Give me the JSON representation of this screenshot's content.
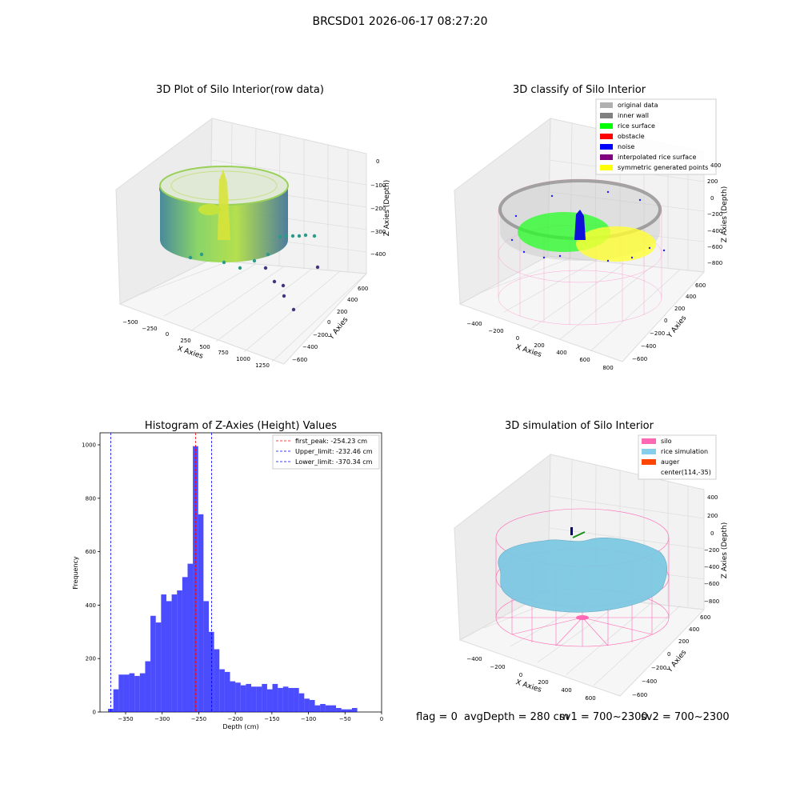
{
  "suptitle": "BRCSD01 2026-06-17 08:27:20",
  "panels": {
    "raw": {
      "title": "3D Plot of Silo Interior(row data)",
      "xlabel": "X Axies",
      "ylabel": "Y Axies",
      "zlabel": "Z Axies (Depth)",
      "xticks": [
        "−500",
        "−250",
        "0",
        "250",
        "500",
        "750",
        "1000",
        "1250"
      ],
      "yticks": [
        "−600",
        "−400",
        "−200",
        "0",
        "200",
        "400",
        "600"
      ],
      "zticks": [
        "0",
        "−100",
        "−200",
        "−300",
        "−400"
      ]
    },
    "classify": {
      "title": "3D classify of Silo Interior",
      "xlabel": "X Axies",
      "ylabel": "Y Axies",
      "zlabel": "Z Axies (Depth)",
      "xticks": [
        "−400",
        "−200",
        "0",
        "200",
        "400",
        "600",
        "800"
      ],
      "yticks": [
        "−600",
        "−400",
        "−200",
        "0",
        "200",
        "400",
        "600"
      ],
      "zticks": [
        "400",
        "200",
        "0",
        "−200",
        "−400",
        "−600",
        "−800"
      ],
      "legend": [
        {
          "label": "original data",
          "color": "#b0b0b0"
        },
        {
          "label": "inner wall",
          "color": "#808080"
        },
        {
          "label": "rice surface",
          "color": "#00ff00"
        },
        {
          "label": "obstacle",
          "color": "#ff0000"
        },
        {
          "label": "noise",
          "color": "#0000ff"
        },
        {
          "label": "interpolated rice surface",
          "color": "#800080"
        },
        {
          "label": "symmetric generated points",
          "color": "#ffff00"
        }
      ]
    },
    "simulation": {
      "title": "3D simulation of Silo Interior",
      "xlabel": "X Axies",
      "ylabel": "Y Axies",
      "zlabel": "Z Axies (Depth)",
      "xticks": [
        "−400",
        "−200",
        "0",
        "200",
        "400",
        "600"
      ],
      "yticks": [
        "−600",
        "−400",
        "−200",
        "0",
        "200",
        "400",
        "600"
      ],
      "zticks": [
        "400",
        "200",
        "0",
        "−200",
        "−400",
        "−600",
        "−800"
      ],
      "legend": [
        {
          "label": "silo",
          "color": "#ff69b4"
        },
        {
          "label": "rice simulation",
          "color": "#87ceeb"
        },
        {
          "label": "auger",
          "color": "#ff4500"
        },
        {
          "label": "center(114,-35)",
          "color": ""
        }
      ]
    }
  },
  "chart_data": {
    "type": "bar",
    "title": "Histogram of Z-Axies (Height) Values",
    "xlabel": "Depth (cm)",
    "ylabel": "Frequency",
    "xlim": [
      -385,
      0
    ],
    "ylim": [
      0,
      1045
    ],
    "xticks": [
      -350,
      -300,
      -250,
      -200,
      -150,
      -100,
      -50,
      0
    ],
    "xtick_labels": [
      "−350",
      "−300",
      "−250",
      "−200",
      "−150",
      "−100",
      "−50",
      "0"
    ],
    "yticks": [
      0,
      200,
      400,
      600,
      800,
      1000
    ],
    "bin_start": -374,
    "bin_width": 7.25,
    "values": [
      12,
      85,
      140,
      140,
      145,
      135,
      145,
      190,
      360,
      335,
      440,
      415,
      440,
      455,
      505,
      555,
      995,
      740,
      415,
      300,
      235,
      160,
      150,
      115,
      110,
      100,
      105,
      95,
      95,
      105,
      85,
      105,
      90,
      95,
      90,
      90,
      70,
      50,
      45,
      25,
      30,
      25,
      25,
      15,
      10,
      10,
      15
    ],
    "bar_color": "#0000ff",
    "vlines": [
      {
        "label": "first_peak: -254.23 cm",
        "x": -254.23,
        "color": "#ff0000"
      },
      {
        "label": "Upper_limit: -232.46 cm",
        "x": -232.46,
        "color": "#0000ff"
      },
      {
        "label": "Lower_limit: -370.34 cm",
        "x": -370.34,
        "color": "#0000ff"
      }
    ],
    "legend_position": "upper right"
  },
  "footer": {
    "flag": "flag = 0",
    "avg_depth": "avgDepth = 280 cm",
    "sv1": "sv1 = 700~2300",
    "sv2": "sv2 = 700~2300"
  }
}
